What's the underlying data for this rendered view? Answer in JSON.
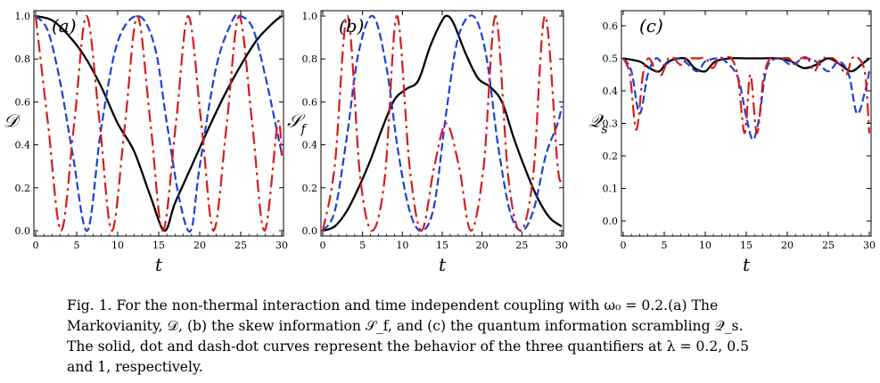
{
  "figure": {
    "panels": [
      {
        "tag": "(a)",
        "ylabel": "𝒟",
        "ylabel_sub": "",
        "xlabel": "t",
        "x_ticks": [
          "0",
          "5",
          "10",
          "15",
          "20",
          "25",
          "30"
        ],
        "y_ticks": [
          "0.0",
          "0.2",
          "0.4",
          "0.6",
          "0.8",
          "1.0"
        ]
      },
      {
        "tag": "(b)",
        "ylabel": "𝒮",
        "ylabel_sub": "f",
        "xlabel": "t",
        "x_ticks": [
          "0",
          "5",
          "10",
          "15",
          "20",
          "25",
          "30"
        ],
        "y_ticks": [
          "0.0",
          "0.2",
          "0.4",
          "0.6",
          "0.8",
          "1.0"
        ]
      },
      {
        "tag": "(c)",
        "ylabel": "𝒬",
        "ylabel_sub": "s",
        "xlabel": "t",
        "x_ticks": [
          "0",
          "5",
          "10",
          "15",
          "20",
          "25",
          "30"
        ],
        "y_ticks": [
          "0.0",
          "0.1",
          "0.2",
          "0.3",
          "0.4",
          "0.5",
          "0.6"
        ]
      }
    ],
    "colors": {
      "solid": "#000000",
      "dot": "#1f3fd6",
      "dashdot": "#d81b1b"
    }
  },
  "chart_data": [
    {
      "type": "line",
      "xlim": [
        0,
        30
      ],
      "ylim": [
        0,
        1.0
      ],
      "grid": false,
      "series": [
        {
          "style": "solid",
          "color": "#000000",
          "x": [
            0,
            2,
            4,
            6,
            8,
            10,
            12,
            14,
            15.7,
            17,
            19,
            21,
            23,
            25,
            27,
            29,
            30
          ],
          "y": [
            1.0,
            0.98,
            0.91,
            0.81,
            0.67,
            0.5,
            0.37,
            0.16,
            0.0,
            0.13,
            0.3,
            0.47,
            0.63,
            0.77,
            0.89,
            0.97,
            1.0
          ]
        },
        {
          "style": "dot",
          "color": "#1f3fd6",
          "x": [
            0,
            1.5,
            3,
            4.5,
            6.3,
            8,
            10,
            12.5,
            14.5,
            16,
            17.5,
            18.9,
            20,
            22,
            24,
            25,
            26.5,
            28,
            29.5,
            30
          ],
          "y": [
            1.0,
            0.93,
            0.69,
            0.36,
            0.0,
            0.48,
            0.88,
            1.0,
            0.86,
            0.5,
            0.15,
            0.0,
            0.3,
            0.76,
            0.98,
            1.0,
            0.94,
            0.72,
            0.45,
            0.36
          ]
        },
        {
          "style": "dashdot",
          "color": "#d81b1b",
          "x": [
            0,
            1.5,
            3.1,
            4.7,
            6.2,
            7.8,
            9.3,
            10.9,
            12.4,
            14,
            15.5,
            17.1,
            18.6,
            20.2,
            21.7,
            23.3,
            24.8,
            26.4,
            27.9,
            29.5,
            30
          ],
          "y": [
            1.0,
            0.5,
            0.0,
            0.5,
            1.0,
            0.5,
            0.0,
            0.5,
            1.0,
            0.5,
            0.0,
            0.5,
            1.0,
            0.5,
            0.0,
            0.5,
            1.0,
            0.5,
            0.0,
            0.5,
            0.35
          ]
        }
      ]
    },
    {
      "type": "line",
      "xlim": [
        0,
        30
      ],
      "ylim": [
        0,
        1.0
      ],
      "grid": false,
      "series": [
        {
          "style": "solid",
          "color": "#000000",
          "x": [
            0,
            1.5,
            3,
            4.5,
            6,
            7.5,
            9,
            10.5,
            12,
            13.5,
            15,
            15.7,
            16.5,
            18,
            19.5,
            21,
            22.5,
            24,
            25.5,
            27,
            28.5,
            30
          ],
          "y": [
            0.0,
            0.02,
            0.09,
            0.2,
            0.33,
            0.48,
            0.61,
            0.66,
            0.7,
            0.86,
            0.98,
            1.0,
            0.96,
            0.82,
            0.71,
            0.67,
            0.6,
            0.43,
            0.28,
            0.15,
            0.06,
            0.02
          ]
        },
        {
          "style": "dot",
          "color": "#1f3fd6",
          "x": [
            0,
            1.5,
            3,
            4.5,
            6.3,
            8,
            9.5,
            11,
            12.5,
            14,
            15.5,
            17,
            18.9,
            20.5,
            22,
            23.5,
            25,
            26.5,
            28,
            29.5,
            30
          ],
          "y": [
            0.0,
            0.09,
            0.43,
            0.83,
            1.0,
            0.76,
            0.36,
            0.08,
            0.0,
            0.12,
            0.55,
            0.9,
            1.0,
            0.82,
            0.4,
            0.09,
            0.0,
            0.1,
            0.35,
            0.5,
            0.58
          ]
        },
        {
          "style": "dashdot",
          "color": "#d81b1b",
          "x": [
            0,
            1.5,
            3.1,
            4.7,
            6.2,
            7.8,
            9.3,
            10.9,
            12.4,
            14,
            15.5,
            17.1,
            18.6,
            20.2,
            21.7,
            23.3,
            24.8,
            26.4,
            27.9,
            29.5,
            30
          ],
          "y": [
            0.0,
            0.3,
            1.0,
            0.25,
            0.0,
            0.25,
            1.0,
            0.3,
            0.0,
            0.3,
            0.5,
            0.3,
            0.0,
            0.3,
            1.0,
            0.25,
            0.0,
            0.25,
            1.0,
            0.3,
            0.25
          ]
        }
      ]
    },
    {
      "type": "line",
      "xlim": [
        0,
        30
      ],
      "ylim": [
        -0.03,
        0.63
      ],
      "grid": false,
      "series": [
        {
          "style": "solid",
          "color": "#000000",
          "x": [
            0,
            2,
            3.2,
            4.4,
            5.5,
            7.5,
            8.7,
            10,
            11.2,
            13,
            15,
            16,
            17,
            19,
            20.5,
            22,
            23.5,
            25,
            26.5,
            27.8,
            29,
            30
          ],
          "y": [
            0.5,
            0.49,
            0.47,
            0.46,
            0.49,
            0.5,
            0.47,
            0.46,
            0.49,
            0.5,
            0.5,
            0.5,
            0.5,
            0.5,
            0.49,
            0.47,
            0.48,
            0.5,
            0.48,
            0.46,
            0.48,
            0.5
          ]
        },
        {
          "style": "dot",
          "color": "#1f3fd6",
          "x": [
            0,
            1,
            2,
            3,
            4,
            5,
            6.3,
            7.5,
            9,
            10,
            11.5,
            12.5,
            14,
            15,
            15.8,
            16.6,
            17.5,
            19,
            20.5,
            22,
            23.5,
            25,
            26.3,
            27.5,
            28.5,
            29.5,
            30
          ],
          "y": [
            0.5,
            0.46,
            0.33,
            0.45,
            0.5,
            0.48,
            0.5,
            0.49,
            0.46,
            0.49,
            0.5,
            0.49,
            0.44,
            0.32,
            0.25,
            0.32,
            0.47,
            0.5,
            0.48,
            0.5,
            0.49,
            0.46,
            0.49,
            0.45,
            0.33,
            0.4,
            0.46
          ]
        },
        {
          "style": "dashdot",
          "color": "#d81b1b",
          "x": [
            0,
            0.8,
            1.6,
            2.4,
            3.1,
            4,
            4.7,
            5.5,
            6.2,
            7,
            7.8,
            8.6,
            9.3,
            10.1,
            10.9,
            11.7,
            12.4,
            13.2,
            14,
            14.8,
            15.5,
            16.3,
            17.1,
            17.9,
            18.6,
            19.4,
            20.2,
            21,
            21.7,
            22.5,
            23.3,
            24.1,
            24.8,
            25.6,
            26.4,
            27.2,
            27.9,
            28.7,
            29.5,
            30
          ],
          "y": [
            0.5,
            0.45,
            0.28,
            0.45,
            0.5,
            0.46,
            0.45,
            0.5,
            0.5,
            0.48,
            0.5,
            0.5,
            0.5,
            0.5,
            0.47,
            0.5,
            0.5,
            0.5,
            0.44,
            0.27,
            0.45,
            0.27,
            0.44,
            0.5,
            0.5,
            0.5,
            0.5,
            0.48,
            0.5,
            0.5,
            0.46,
            0.5,
            0.5,
            0.5,
            0.48,
            0.45,
            0.5,
            0.5,
            0.45,
            0.27
          ]
        }
      ]
    }
  ],
  "caption": {
    "lines": [
      "Fig. 1.  For the non-thermal interaction and time independent coupling with ω₀ = 0.2.(a) The",
      "Markovianity, 𝒟, (b) the skew information 𝒮_f, and (c) the quantum information scrambling 𝒬_s.",
      "The solid, dot and dash-dot curves represent the behavior of the three quantifiers at λ = 0.2, 0.5",
      "and 1, respectively."
    ]
  }
}
